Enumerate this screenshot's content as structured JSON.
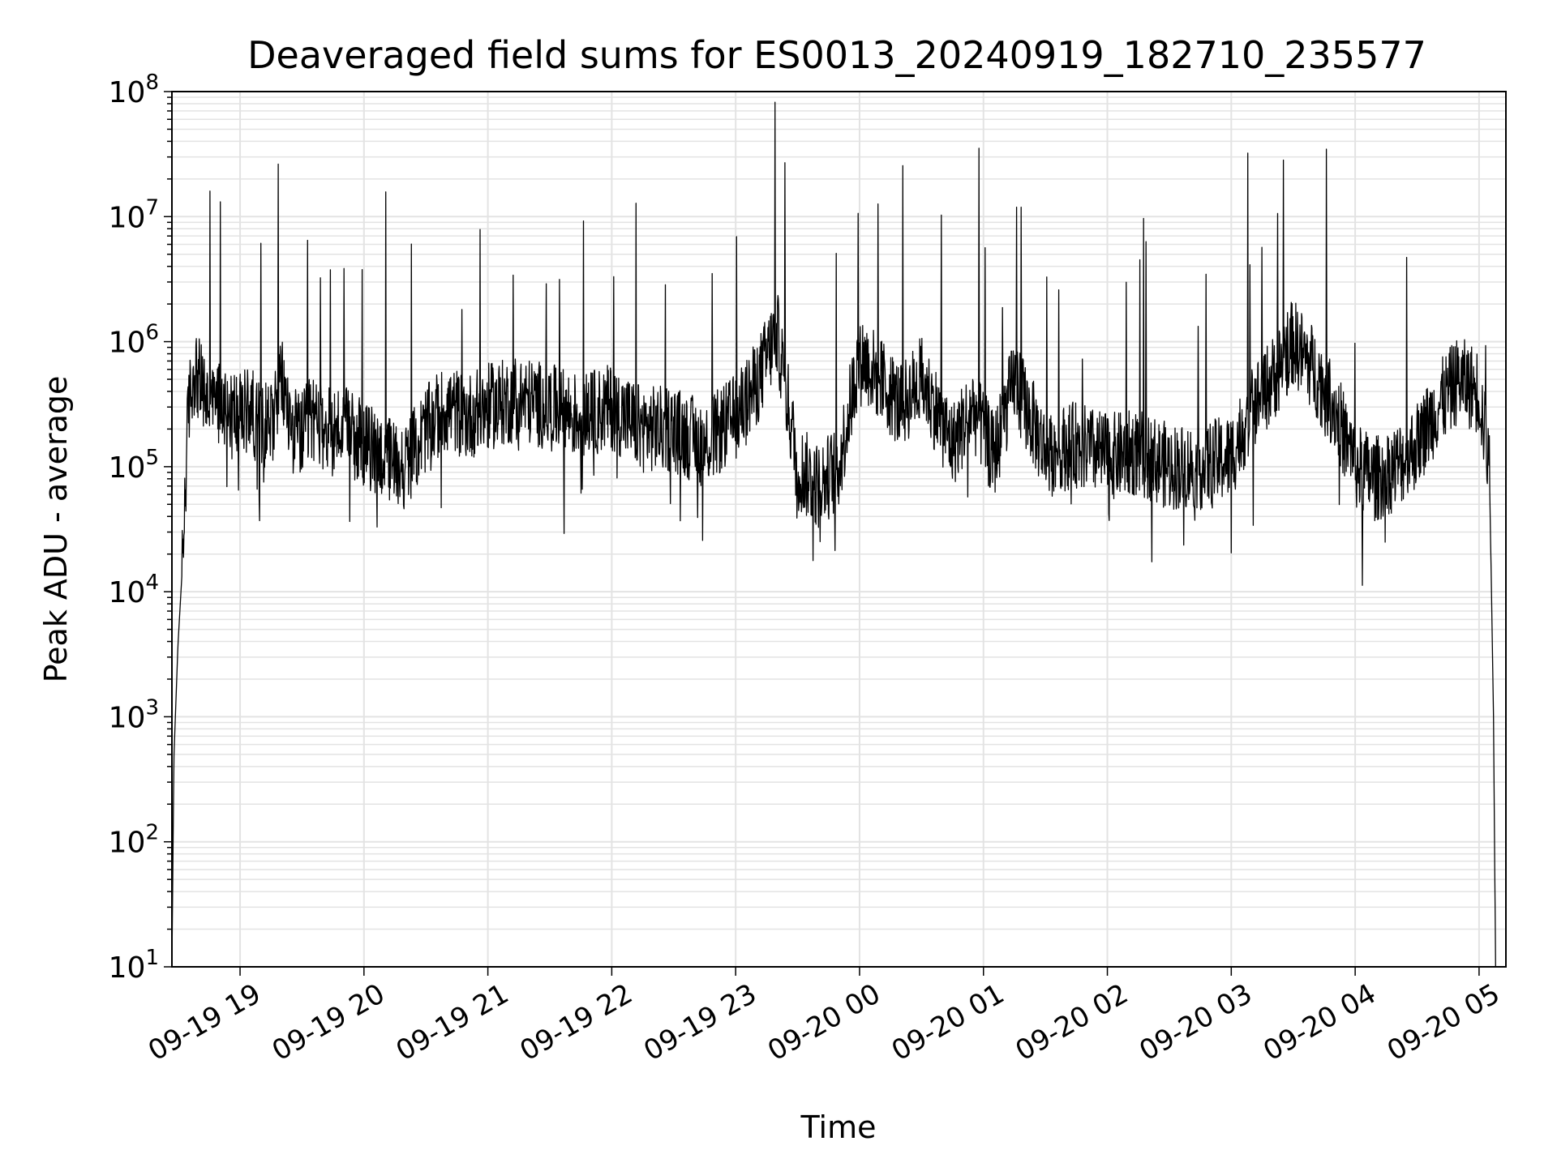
{
  "chart_data": {
    "type": "line",
    "title": "Deaveraged field sums for ES0013_20240919_182710_235577",
    "xlabel": "Time",
    "ylabel": "Peak ADU - average",
    "yscale": "log",
    "ylim": [
      10,
      100000000
    ],
    "xlim": [
      "2024-09-19 18:27",
      "2024-09-20 05:13"
    ],
    "grid": "major and minor, light gray",
    "line_color": "#000000",
    "x_tick_labels": [
      "09-19 19",
      "09-19 20",
      "09-19 21",
      "09-19 22",
      "09-19 23",
      "09-20 00",
      "09-20 01",
      "09-20 02",
      "09-20 03",
      "09-20 04",
      "09-20 05"
    ],
    "y_tick_labels": [
      {
        "base": "10",
        "exp": "1"
      },
      {
        "base": "10",
        "exp": "2"
      },
      {
        "base": "10",
        "exp": "3"
      },
      {
        "base": "10",
        "exp": "4"
      },
      {
        "base": "10",
        "exp": "5"
      },
      {
        "base": "10",
        "exp": "6"
      },
      {
        "base": "10",
        "exp": "7"
      },
      {
        "base": "10",
        "exp": "8"
      }
    ],
    "series": [
      {
        "x": [
          "2024-09-19 18:27",
          "2024-09-19 18:28",
          "2024-09-19 18:30",
          "2024-09-19 18:32",
          "2024-09-19 18:35",
          "2024-09-19 18:38",
          "2024-09-19 18:42",
          "2024-09-19 18:46",
          "2024-09-19 18:50",
          "2024-09-19 18:55",
          "2024-09-19 19:00",
          "2024-09-19 19:05",
          "2024-09-19 19:10",
          "2024-09-19 19:15",
          "2024-09-19 19:20",
          "2024-09-19 19:25",
          "2024-09-19 19:30",
          "2024-09-19 19:35",
          "2024-09-19 19:40",
          "2024-09-19 19:50",
          "2024-09-19 20:00",
          "2024-09-19 20:10",
          "2024-09-19 20:20",
          "2024-09-19 20:30",
          "2024-09-19 20:40",
          "2024-09-19 20:50",
          "2024-09-19 21:00",
          "2024-09-19 21:15",
          "2024-09-19 21:30",
          "2024-09-19 21:45",
          "2024-09-19 22:00",
          "2024-09-19 22:15",
          "2024-09-19 22:30",
          "2024-09-19 22:45",
          "2024-09-19 23:00",
          "2024-09-19 23:10",
          "2024-09-19 23:20",
          "2024-09-19 23:30",
          "2024-09-19 23:40",
          "2024-09-19 23:50",
          "2024-09-20 00:00",
          "2024-09-20 00:10",
          "2024-09-20 00:20",
          "2024-09-20 00:30",
          "2024-09-20 00:45",
          "2024-09-20 00:55",
          "2024-09-20 01:05",
          "2024-09-20 01:15",
          "2024-09-20 01:30",
          "2024-09-20 01:45",
          "2024-09-20 02:00",
          "2024-09-20 02:15",
          "2024-09-20 02:30",
          "2024-09-20 02:45",
          "2024-09-20 03:00",
          "2024-09-20 03:10",
          "2024-09-20 03:20",
          "2024-09-20 03:30",
          "2024-09-20 03:40",
          "2024-09-20 03:50",
          "2024-09-20 04:00",
          "2024-09-20 04:10",
          "2024-09-20 04:20",
          "2024-09-20 04:30",
          "2024-09-20 04:40",
          "2024-09-20 04:50",
          "2024-09-20 05:00",
          "2024-09-20 05:05",
          "2024-09-20 05:07",
          "2024-09-20 05:08"
        ],
        "y": [
          10,
          500,
          4000,
          15000,
          300000,
          600000,
          400000,
          300000,
          350000,
          300000,
          250000,
          300000,
          200000,
          250000,
          500000,
          200000,
          180000,
          250000,
          200000,
          200000,
          150000,
          120000,
          100000,
          200000,
          300000,
          250000,
          300000,
          350000,
          300000,
          250000,
          300000,
          200000,
          200000,
          150000,
          250000,
          450000,
          1200000,
          100000,
          70000,
          100000,
          800000,
          500000,
          300000,
          500000,
          150000,
          300000,
          120000,
          500000,
          130000,
          150000,
          120000,
          130000,
          100000,
          100000,
          120000,
          300000,
          500000,
          1000000,
          600000,
          300000,
          100000,
          80000,
          100000,
          150000,
          300000,
          500000,
          400000,
          100000,
          1000,
          10
        ]
      }
    ]
  }
}
